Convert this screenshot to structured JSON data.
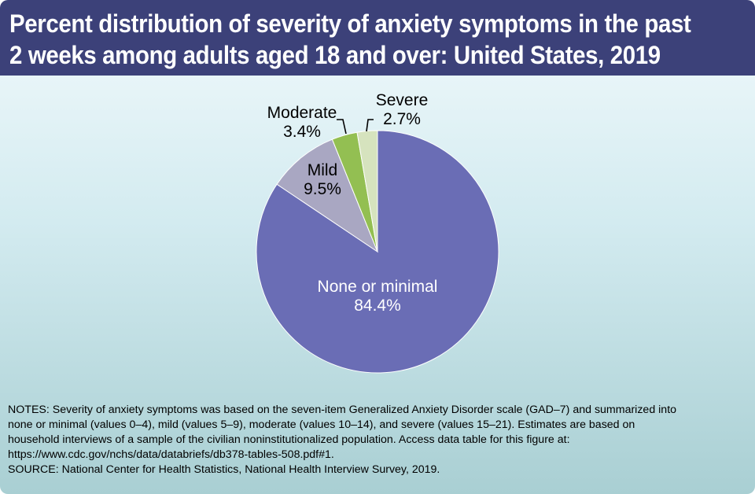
{
  "title": {
    "line1": "Percent distribution of severity of anxiety symptoms in the past",
    "line2": "2 weeks among adults aged 18 and over: United States, 2019"
  },
  "chart_data": {
    "type": "pie",
    "title": "Percent distribution of severity of anxiety symptoms in the past 2 weeks among adults aged 18 and over: United States, 2019",
    "categories": [
      "None or minimal",
      "Mild",
      "Moderate",
      "Severe"
    ],
    "values": [
      84.4,
      9.5,
      3.4,
      2.7
    ],
    "value_labels": [
      "84.4%",
      "9.5%",
      "3.4%",
      "2.7%"
    ],
    "colors": [
      "#6a6db5",
      "#a9a7c2",
      "#93bf52",
      "#d6e3be"
    ],
    "label_colors": [
      "#ffffff",
      "#000000",
      "#000000",
      "#000000"
    ],
    "start_angle": "12 o'clock",
    "direction": "clockwise, starting with None or minimal"
  },
  "notes": {
    "lines": [
      "NOTES: Severity of anxiety symptoms was based on the seven-item Generalized Anxiety Disorder scale (GAD–7) and summarized into",
      "none or minimal (values 0–4), mild (values 5–9), moderate (values 10–14), and severe (values 15–21). Estimates are based on",
      "household interviews of a sample of the civilian noninstitutionalized population. Access data table for this figure at:",
      "https://www.cdc.gov/nchs/data/databriefs/db378-tables-508.pdf#1.",
      "SOURCE: National Center for Health Statistics, National Health Interview Survey, 2019."
    ]
  }
}
